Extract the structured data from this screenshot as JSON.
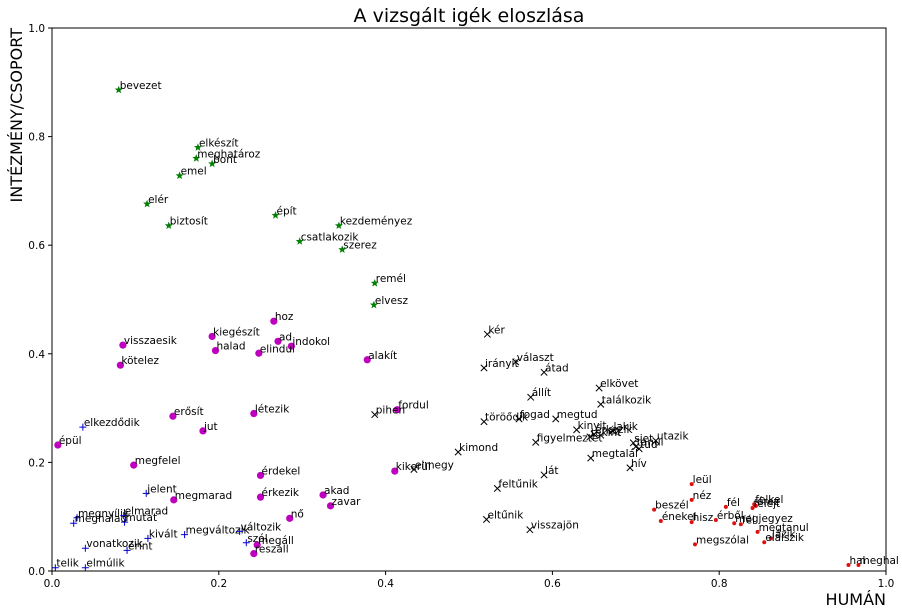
{
  "chart_data": {
    "type": "scatter",
    "title": "A vizsgált igék eloszlása",
    "xlabel": "HUMÁN",
    "ylabel": "INTÉZMÉNY/CSOPORT",
    "xlim": [
      0,
      1
    ],
    "ylim": [
      0,
      1
    ],
    "xticks": [
      "0.0",
      "0.2",
      "0.4",
      "0.6",
      "0.8",
      "1.0"
    ],
    "yticks": [
      "0.0",
      "0.2",
      "0.4",
      "0.6",
      "0.8",
      "1.0"
    ],
    "grid": false,
    "series": [
      {
        "marker": "star",
        "color": "#008000",
        "points": [
          {
            "label": "bevezet",
            "x": 0.08,
            "y": 0.886
          },
          {
            "label": "elkészít",
            "x": 0.175,
            "y": 0.78
          },
          {
            "label": "meghatároz",
            "x": 0.173,
            "y": 0.76
          },
          {
            "label": "bont",
            "x": 0.192,
            "y": 0.75
          },
          {
            "label": "emel",
            "x": 0.153,
            "y": 0.728
          },
          {
            "label": "elér",
            "x": 0.114,
            "y": 0.676
          },
          {
            "label": "épít",
            "x": 0.268,
            "y": 0.655
          },
          {
            "label": "biztosít",
            "x": 0.14,
            "y": 0.636
          },
          {
            "label": "kezdeményez",
            "x": 0.344,
            "y": 0.636
          },
          {
            "label": "csatlakozik",
            "x": 0.297,
            "y": 0.607
          },
          {
            "label": "szerez",
            "x": 0.348,
            "y": 0.592
          },
          {
            "label": "remél",
            "x": 0.387,
            "y": 0.53
          },
          {
            "label": "elvesz",
            "x": 0.386,
            "y": 0.49
          }
        ]
      },
      {
        "marker": "circle",
        "color": "#bf00bf",
        "points": [
          {
            "label": "hoz",
            "x": 0.266,
            "y": 0.46
          },
          {
            "label": "kiegészít",
            "x": 0.192,
            "y": 0.432
          },
          {
            "label": "ad",
            "x": 0.271,
            "y": 0.423
          },
          {
            "label": "visszaesik",
            "x": 0.085,
            "y": 0.416
          },
          {
            "label": "indokol",
            "x": 0.287,
            "y": 0.414
          },
          {
            "label": "halad",
            "x": 0.196,
            "y": 0.406
          },
          {
            "label": "elindul",
            "x": 0.248,
            "y": 0.401
          },
          {
            "label": "alakít",
            "x": 0.378,
            "y": 0.389
          },
          {
            "label": "kötelez",
            "x": 0.082,
            "y": 0.379
          },
          {
            "label": "fordul",
            "x": 0.414,
            "y": 0.297
          },
          {
            "label": "erősít",
            "x": 0.145,
            "y": 0.285
          },
          {
            "label": "létezik",
            "x": 0.242,
            "y": 0.29
          },
          {
            "label": "jut",
            "x": 0.181,
            "y": 0.258
          },
          {
            "label": "épül",
            "x": 0.007,
            "y": 0.232
          },
          {
            "label": "megfelel",
            "x": 0.098,
            "y": 0.195
          },
          {
            "label": "kikerül",
            "x": 0.411,
            "y": 0.184
          },
          {
            "label": "érdekel",
            "x": 0.25,
            "y": 0.176
          },
          {
            "label": "megmarad",
            "x": 0.146,
            "y": 0.131
          },
          {
            "label": "érkezik",
            "x": 0.25,
            "y": 0.136
          },
          {
            "label": "akad",
            "x": 0.325,
            "y": 0.14
          },
          {
            "label": "zavar",
            "x": 0.334,
            "y": 0.12
          },
          {
            "label": "nő",
            "x": 0.285,
            "y": 0.097
          },
          {
            "label": "megáll",
            "x": 0.246,
            "y": 0.048
          },
          {
            "label": "reszáll",
            "x": 0.242,
            "y": 0.032
          }
        ]
      },
      {
        "marker": "x",
        "color": "#000000",
        "points": [
          {
            "label": "kér",
            "x": 0.522,
            "y": 0.436
          },
          {
            "label": "választ",
            "x": 0.556,
            "y": 0.385
          },
          {
            "label": "irányít",
            "x": 0.518,
            "y": 0.374
          },
          {
            "label": "átad",
            "x": 0.59,
            "y": 0.366
          },
          {
            "label": "elkövet",
            "x": 0.656,
            "y": 0.337
          },
          {
            "label": "állít",
            "x": 0.574,
            "y": 0.32
          },
          {
            "label": "találkozik",
            "x": 0.658,
            "y": 0.307
          },
          {
            "label": "pihen",
            "x": 0.387,
            "y": 0.288
          },
          {
            "label": "fogad",
            "x": 0.56,
            "y": 0.28
          },
          {
            "label": "megtud",
            "x": 0.604,
            "y": 0.28
          },
          {
            "label": "töröődik",
            "x": 0.518,
            "y": 0.275
          },
          {
            "label": "kinyit",
            "x": 0.629,
            "y": 0.26
          },
          {
            "label": "lakik",
            "x": 0.672,
            "y": 0.258
          },
          {
            "label": "érkezik",
            "x": 0.65,
            "y": 0.252
          },
          {
            "label": "tekint",
            "x": 0.645,
            "y": 0.247
          },
          {
            "label": "néz",
            "x": 0.658,
            "y": 0.25
          },
          {
            "label": "utazik",
            "x": 0.724,
            "y": 0.24
          },
          {
            "label": "siet",
            "x": 0.697,
            "y": 0.236
          },
          {
            "label": "figyelmeztet",
            "x": 0.58,
            "y": 0.237
          },
          {
            "label": "tanul",
            "x": 0.7,
            "y": 0.229
          },
          {
            "label": "tud",
            "x": 0.704,
            "y": 0.225
          },
          {
            "label": "kimond",
            "x": 0.487,
            "y": 0.219
          },
          {
            "label": "megtalál",
            "x": 0.646,
            "y": 0.208
          },
          {
            "label": "hív",
            "x": 0.693,
            "y": 0.19
          },
          {
            "label": "elmegy",
            "x": 0.434,
            "y": 0.187
          },
          {
            "label": "lát",
            "x": 0.59,
            "y": 0.177
          },
          {
            "label": "feltűnik",
            "x": 0.534,
            "y": 0.152
          },
          {
            "label": "eltűnik",
            "x": 0.521,
            "y": 0.095
          },
          {
            "label": "visszajön",
            "x": 0.573,
            "y": 0.076
          }
        ]
      },
      {
        "marker": "plus",
        "color": "#0000cd",
        "points": [
          {
            "label": "elkezdődik",
            "x": 0.037,
            "y": 0.265
          },
          {
            "label": "jelent",
            "x": 0.113,
            "y": 0.143
          },
          {
            "label": "megnyílik",
            "x": 0.03,
            "y": 0.098
          },
          {
            "label": "elmarad",
            "x": 0.086,
            "y": 0.102
          },
          {
            "label": "mutat",
            "x": 0.087,
            "y": 0.09
          },
          {
            "label": "meghalad",
            "x": 0.026,
            "y": 0.088
          },
          {
            "label": "megváltozik",
            "x": 0.159,
            "y": 0.067
          },
          {
            "label": "változik",
            "x": 0.225,
            "y": 0.073
          },
          {
            "label": "kivált",
            "x": 0.115,
            "y": 0.06
          },
          {
            "label": "szól",
            "x": 0.233,
            "y": 0.052
          },
          {
            "label": "vonatkozik",
            "x": 0.04,
            "y": 0.042
          },
          {
            "label": "érint",
            "x": 0.09,
            "y": 0.038
          },
          {
            "label": "telik",
            "x": 0.004,
            "y": 0.006
          },
          {
            "label": "elmúlik",
            "x": 0.04,
            "y": 0.006
          }
        ]
      },
      {
        "marker": "dot",
        "color": "#e01010",
        "points": [
          {
            "label": "leül",
            "x": 0.767,
            "y": 0.16
          },
          {
            "label": "néz",
            "x": 0.767,
            "y": 0.131
          },
          {
            "label": "fél",
            "x": 0.808,
            "y": 0.118
          },
          {
            "label": "felkel",
            "x": 0.842,
            "y": 0.123
          },
          {
            "label": "érez",
            "x": 0.844,
            "y": 0.12
          },
          {
            "label": "felejt",
            "x": 0.84,
            "y": 0.116
          },
          {
            "label": "beszél",
            "x": 0.722,
            "y": 0.113
          },
          {
            "label": "énekel",
            "x": 0.73,
            "y": 0.092
          },
          {
            "label": "érből",
            "x": 0.796,
            "y": 0.094
          },
          {
            "label": "hisz",
            "x": 0.767,
            "y": 0.09
          },
          {
            "label": "megjegyez",
            "x": 0.818,
            "y": 0.088
          },
          {
            "label": "fél",
            "x": 0.826,
            "y": 0.086
          },
          {
            "label": "megtanul",
            "x": 0.846,
            "y": 0.072
          },
          {
            "label": "lázik",
            "x": 0.862,
            "y": 0.06
          },
          {
            "label": "elalszik",
            "x": 0.854,
            "y": 0.053
          },
          {
            "label": "megszólal",
            "x": 0.771,
            "y": 0.049
          },
          {
            "label": "hal",
            "x": 0.955,
            "y": 0.011
          },
          {
            "label": "meghal",
            "x": 0.967,
            "y": 0.011
          }
        ]
      }
    ]
  }
}
